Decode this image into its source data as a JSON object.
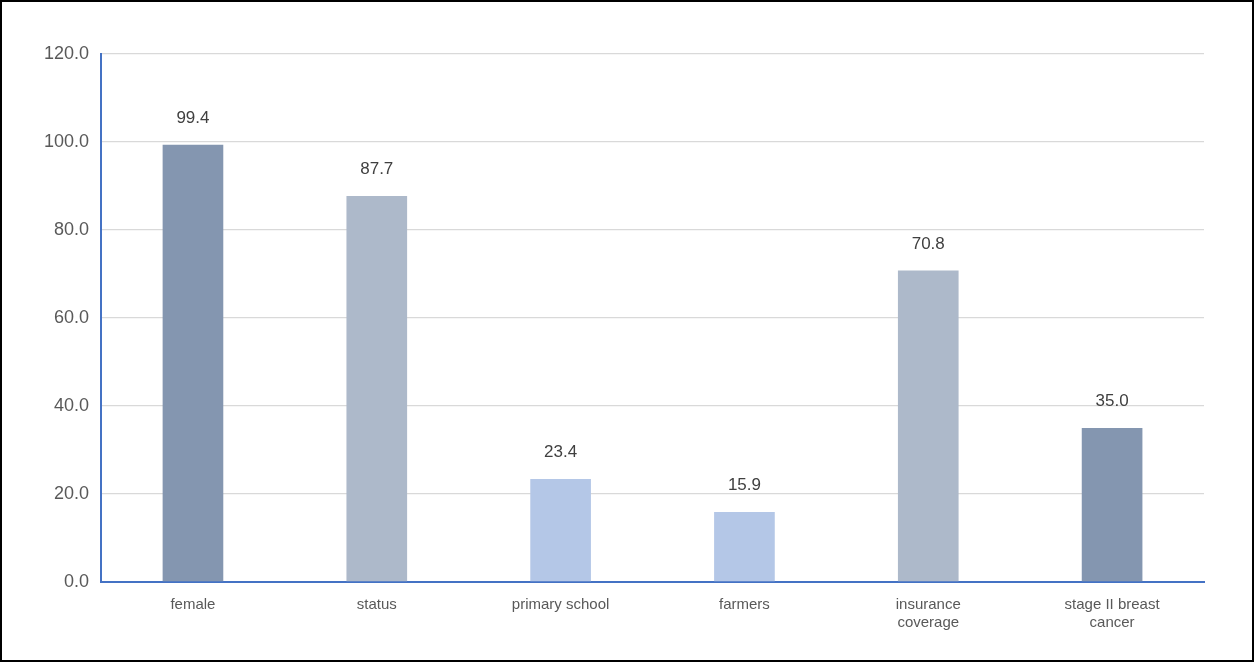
{
  "chart_data": {
    "type": "bar",
    "categories": [
      "female",
      "status",
      "primary school",
      "farmers",
      "insurance coverage",
      "stage II breast cancer"
    ],
    "values": [
      99.4,
      87.7,
      23.4,
      15.9,
      70.8,
      35.0
    ],
    "colors": [
      "#8496b0",
      "#adb9ca",
      "#b4c7e7",
      "#b4c7e7",
      "#adb9ca",
      "#8496b0"
    ],
    "value_labels": [
      "99.4",
      "87.7",
      "23.4",
      "15.9",
      "70.8",
      "35.0"
    ],
    "ylim": [
      0,
      120
    ],
    "yticks": [
      {
        "value": 0,
        "label": "0.0"
      },
      {
        "value": 20,
        "label": "20.0"
      },
      {
        "value": 40,
        "label": "40.0"
      },
      {
        "value": 60,
        "label": "60.0"
      },
      {
        "value": 80,
        "label": "80.0"
      },
      {
        "value": 100,
        "label": "100.0"
      },
      {
        "value": 120,
        "label": "120.0"
      }
    ],
    "grid": "y"
  }
}
